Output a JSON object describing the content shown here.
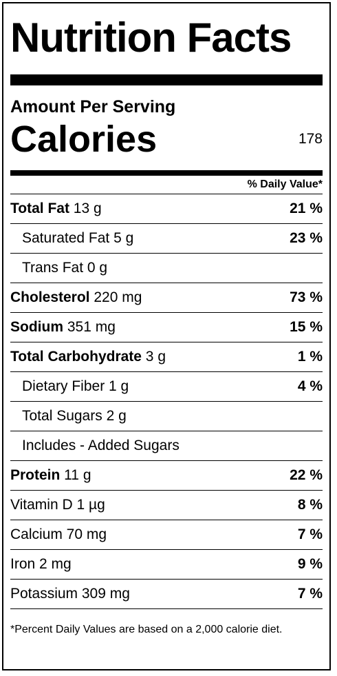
{
  "title": "Nutrition Facts",
  "amount_per_serving": "Amount Per Serving",
  "calories": {
    "label": "Calories",
    "value": "178"
  },
  "daily_value_header": "% Daily Value*",
  "rows": [
    {
      "name": "Total Fat",
      "amount": " 13 g",
      "dv": "21 %",
      "bold": true,
      "indent": false
    },
    {
      "name": "",
      "amount": "Saturated Fat 5 g",
      "dv": "23 %",
      "bold": false,
      "indent": true
    },
    {
      "name": "",
      "amount": "Trans Fat 0 g",
      "dv": "",
      "bold": false,
      "indent": true
    },
    {
      "name": "Cholesterol",
      "amount": " 220 mg",
      "dv": "73 %",
      "bold": true,
      "indent": false
    },
    {
      "name": "Sodium",
      "amount": " 351 mg",
      "dv": "15 %",
      "bold": true,
      "indent": false
    },
    {
      "name": "Total Carbohydrate",
      "amount": " 3 g",
      "dv": "1 %",
      "bold": true,
      "indent": false
    },
    {
      "name": "",
      "amount": "Dietary Fiber 1 g",
      "dv": "4 %",
      "bold": false,
      "indent": true
    },
    {
      "name": "",
      "amount": "Total Sugars 2 g",
      "dv": "",
      "bold": false,
      "indent": true
    },
    {
      "name": "",
      "amount": "Includes - Added Sugars",
      "dv": "",
      "bold": false,
      "indent": true
    },
    {
      "name": "Protein",
      "amount": " 11 g",
      "dv": "22 %",
      "bold": true,
      "indent": false
    },
    {
      "name": "",
      "amount": "Vitamin D 1 µg",
      "dv": "8 %",
      "bold": false,
      "indent": false
    },
    {
      "name": "",
      "amount": "Calcium 70 mg",
      "dv": "7 %",
      "bold": false,
      "indent": false
    },
    {
      "name": "",
      "amount": "Iron 2 mg",
      "dv": "9 %",
      "bold": false,
      "indent": false
    },
    {
      "name": "",
      "amount": "Potassium 309 mg",
      "dv": "7 %",
      "bold": false,
      "indent": false
    }
  ],
  "footnote": "*Percent Daily Values are based on a 2,000 calorie diet."
}
